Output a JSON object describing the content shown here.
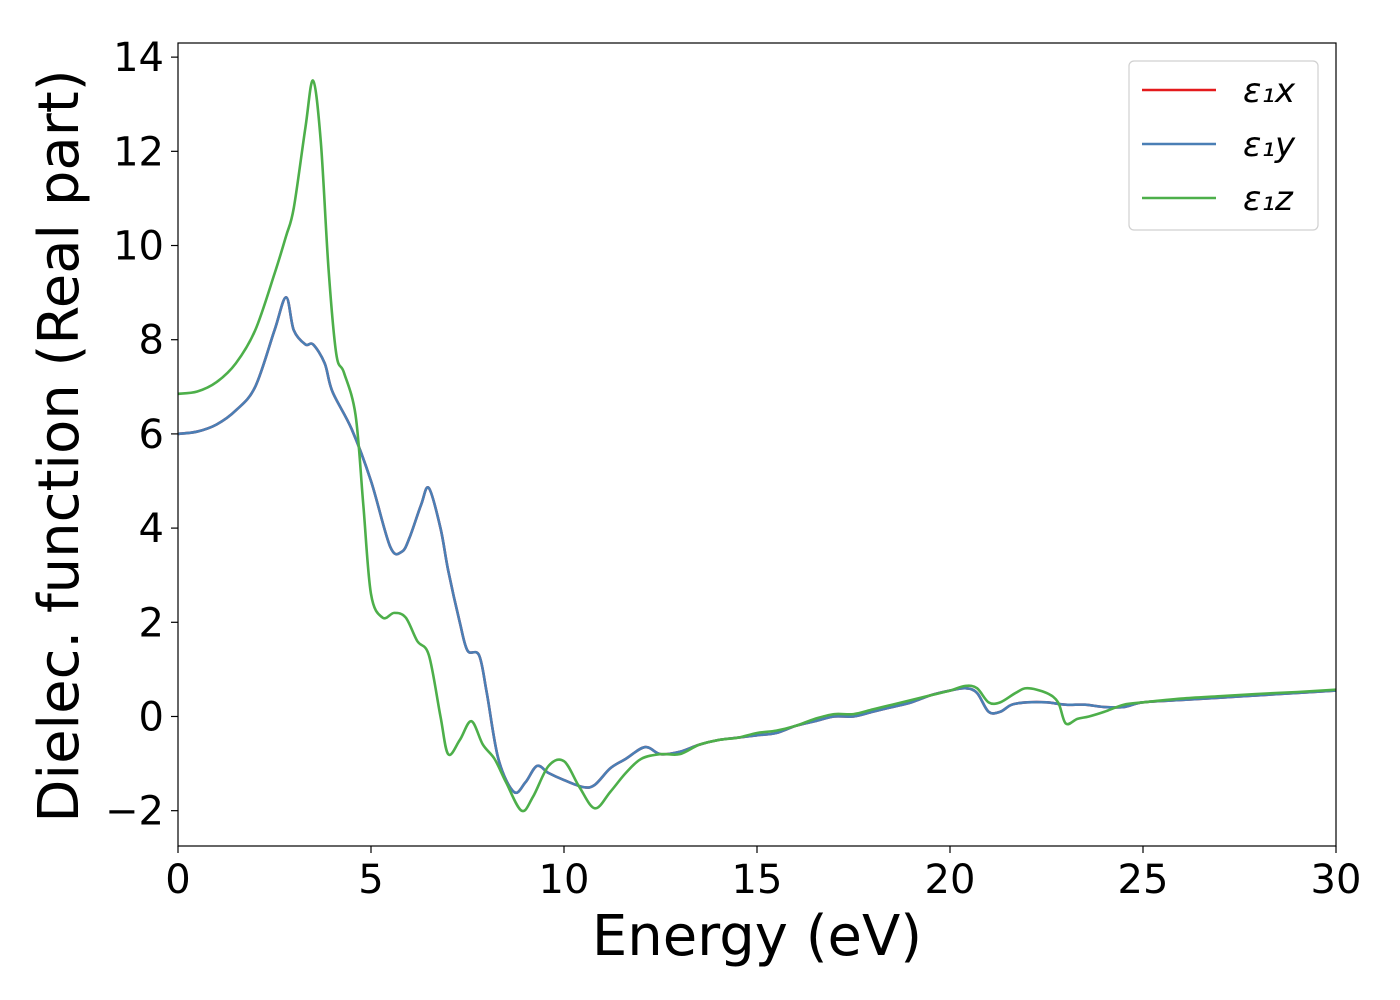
{
  "chart_data": {
    "type": "line",
    "title": "",
    "xlabel": "Energy (eV)",
    "ylabel": "Dielec. function (Real part)",
    "xlim": [
      0,
      30
    ],
    "ylim": [
      -2.75,
      14.3
    ],
    "xticks": [
      0,
      5,
      10,
      15,
      20,
      25,
      30
    ],
    "xtick_labels": [
      "0",
      "5",
      "10",
      "15",
      "20",
      "25",
      "30"
    ],
    "yticks": [
      -2,
      0,
      2,
      4,
      6,
      8,
      10,
      12,
      14
    ],
    "ytick_labels": [
      "−2",
      "0",
      "2",
      "4",
      "6",
      "8",
      "10",
      "12",
      "14"
    ],
    "grid": false,
    "legend_position": "top-right",
    "series": [
      {
        "name": "ε₁x",
        "color": "#e41a1c",
        "x": [
          0,
          0.5,
          1.0,
          1.5,
          2.0,
          2.5,
          2.8,
          3.0,
          3.3,
          3.5,
          3.8,
          4.0,
          4.5,
          5.0,
          5.5,
          5.8,
          6.0,
          6.3,
          6.5,
          6.8,
          7.0,
          7.3,
          7.5,
          7.8,
          8.0,
          8.3,
          8.7,
          9.0,
          9.3,
          9.6,
          10.0,
          10.5,
          10.8,
          11.2,
          11.6,
          12.1,
          12.5,
          13.0,
          13.5,
          14.0,
          14.5,
          15.0,
          15.5,
          16.0,
          16.5,
          17.0,
          17.5,
          18.0,
          18.5,
          19.0,
          19.5,
          20.0,
          20.4,
          20.7,
          21.0,
          21.3,
          21.6,
          22.0,
          22.5,
          23.0,
          23.5,
          24.0,
          24.5,
          25.0,
          26.0,
          27.0,
          28.0,
          29.0,
          30.0
        ],
        "y": [
          6.0,
          6.05,
          6.2,
          6.5,
          7.0,
          8.2,
          8.9,
          8.2,
          7.9,
          7.9,
          7.5,
          6.9,
          6.1,
          5.0,
          3.6,
          3.5,
          3.8,
          4.5,
          4.85,
          4.0,
          3.1,
          2.0,
          1.4,
          1.3,
          0.5,
          -0.9,
          -1.6,
          -1.4,
          -1.05,
          -1.2,
          -1.35,
          -1.5,
          -1.45,
          -1.1,
          -0.9,
          -0.65,
          -0.8,
          -0.75,
          -0.6,
          -0.5,
          -0.45,
          -0.4,
          -0.35,
          -0.2,
          -0.1,
          0.0,
          0.0,
          0.1,
          0.2,
          0.3,
          0.45,
          0.55,
          0.6,
          0.5,
          0.1,
          0.1,
          0.25,
          0.3,
          0.3,
          0.25,
          0.25,
          0.2,
          0.2,
          0.3,
          0.35,
          0.4,
          0.45,
          0.5,
          0.55
        ]
      },
      {
        "name": "ε₁y",
        "color": "#4a7fb5",
        "x": [
          0,
          0.5,
          1.0,
          1.5,
          2.0,
          2.5,
          2.8,
          3.0,
          3.3,
          3.5,
          3.8,
          4.0,
          4.5,
          5.0,
          5.5,
          5.8,
          6.0,
          6.3,
          6.5,
          6.8,
          7.0,
          7.3,
          7.5,
          7.8,
          8.0,
          8.3,
          8.7,
          9.0,
          9.3,
          9.6,
          10.0,
          10.5,
          10.8,
          11.2,
          11.6,
          12.1,
          12.5,
          13.0,
          13.5,
          14.0,
          14.5,
          15.0,
          15.5,
          16.0,
          16.5,
          17.0,
          17.5,
          18.0,
          18.5,
          19.0,
          19.5,
          20.0,
          20.4,
          20.7,
          21.0,
          21.3,
          21.6,
          22.0,
          22.5,
          23.0,
          23.5,
          24.0,
          24.5,
          25.0,
          26.0,
          27.0,
          28.0,
          29.0,
          30.0
        ],
        "y": [
          6.0,
          6.05,
          6.2,
          6.5,
          7.0,
          8.2,
          8.9,
          8.2,
          7.9,
          7.9,
          7.5,
          6.9,
          6.1,
          5.0,
          3.6,
          3.5,
          3.8,
          4.5,
          4.85,
          4.0,
          3.1,
          2.0,
          1.4,
          1.3,
          0.5,
          -0.9,
          -1.6,
          -1.4,
          -1.05,
          -1.2,
          -1.35,
          -1.5,
          -1.45,
          -1.1,
          -0.9,
          -0.65,
          -0.8,
          -0.75,
          -0.6,
          -0.5,
          -0.45,
          -0.4,
          -0.35,
          -0.2,
          -0.1,
          0.0,
          0.0,
          0.1,
          0.2,
          0.3,
          0.45,
          0.55,
          0.6,
          0.5,
          0.1,
          0.1,
          0.25,
          0.3,
          0.3,
          0.25,
          0.25,
          0.2,
          0.2,
          0.3,
          0.35,
          0.4,
          0.45,
          0.5,
          0.55
        ]
      },
      {
        "name": "ε₁z",
        "color": "#4daf4a",
        "x": [
          0,
          0.5,
          1.0,
          1.5,
          2.0,
          2.5,
          2.8,
          3.0,
          3.3,
          3.5,
          3.7,
          3.9,
          4.1,
          4.3,
          4.6,
          4.8,
          5.0,
          5.3,
          5.6,
          5.9,
          6.2,
          6.5,
          6.8,
          7.0,
          7.3,
          7.6,
          7.9,
          8.2,
          8.5,
          8.9,
          9.2,
          9.6,
          10.0,
          10.4,
          10.8,
          11.2,
          11.6,
          12.0,
          12.5,
          13.0,
          13.5,
          14.0,
          14.5,
          15.0,
          15.5,
          16.0,
          16.5,
          17.0,
          17.5,
          18.0,
          18.5,
          19.0,
          19.5,
          20.0,
          20.4,
          20.7,
          21.0,
          21.3,
          21.7,
          22.0,
          22.5,
          22.8,
          23.0,
          23.3,
          23.6,
          24.0,
          24.5,
          25.0,
          26.0,
          27.0,
          28.0,
          29.0,
          30.0
        ],
        "y": [
          6.85,
          6.9,
          7.1,
          7.5,
          8.2,
          9.4,
          10.2,
          10.8,
          12.5,
          13.5,
          12.2,
          9.5,
          7.7,
          7.3,
          6.4,
          4.5,
          2.6,
          2.1,
          2.2,
          2.1,
          1.6,
          1.3,
          0.0,
          -0.8,
          -0.5,
          -0.1,
          -0.6,
          -0.9,
          -1.4,
          -2.0,
          -1.7,
          -1.05,
          -0.95,
          -1.5,
          -1.95,
          -1.6,
          -1.2,
          -0.9,
          -0.8,
          -0.8,
          -0.6,
          -0.5,
          -0.45,
          -0.35,
          -0.3,
          -0.2,
          -0.05,
          0.05,
          0.05,
          0.15,
          0.25,
          0.35,
          0.45,
          0.55,
          0.65,
          0.6,
          0.3,
          0.3,
          0.5,
          0.6,
          0.5,
          0.3,
          -0.15,
          -0.05,
          0.0,
          0.1,
          0.25,
          0.3,
          0.38,
          0.43,
          0.48,
          0.52,
          0.57
        ]
      }
    ]
  }
}
